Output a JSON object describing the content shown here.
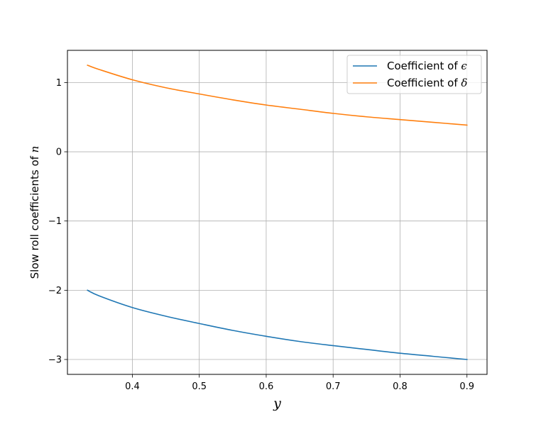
{
  "chart_data": {
    "type": "line",
    "title": "",
    "xlabel": "y",
    "ylabel_prefix": "Slow roll coefficients of ",
    "ylabel_symbol": "n",
    "xlim": [
      0.303,
      0.93
    ],
    "ylim": [
      -3.215,
      1.465
    ],
    "x_ticks": [
      0.4,
      0.5,
      0.6,
      0.7,
      0.8,
      0.9
    ],
    "x_tick_labels": [
      "0.4",
      "0.5",
      "0.6",
      "0.7",
      "0.8",
      "0.9"
    ],
    "y_ticks": [
      -3,
      -2,
      -1,
      0,
      1
    ],
    "y_tick_labels": [
      "−3",
      "−2",
      "−1",
      "0",
      "1"
    ],
    "grid": true,
    "legend_placement": "upper right",
    "x": [
      0.333,
      0.35,
      0.4,
      0.45,
      0.5,
      0.55,
      0.6,
      0.65,
      0.7,
      0.75,
      0.8,
      0.85,
      0.9
    ],
    "series": [
      {
        "name_prefix": "Coefficient of ",
        "name_symbol": "ϵ",
        "color": "#1f77b4",
        "values": [
          -2.0,
          -2.08,
          -2.25,
          -2.375,
          -2.48,
          -2.58,
          -2.665,
          -2.74,
          -2.8,
          -2.855,
          -2.91,
          -2.955,
          -3.0
        ]
      },
      {
        "name_prefix": "Coefficient of ",
        "name_symbol": "δ",
        "color": "#ff7f0e",
        "values": [
          1.25,
          1.19,
          1.04,
          0.925,
          0.835,
          0.75,
          0.675,
          0.615,
          0.555,
          0.505,
          0.465,
          0.425,
          0.385
        ]
      }
    ]
  }
}
